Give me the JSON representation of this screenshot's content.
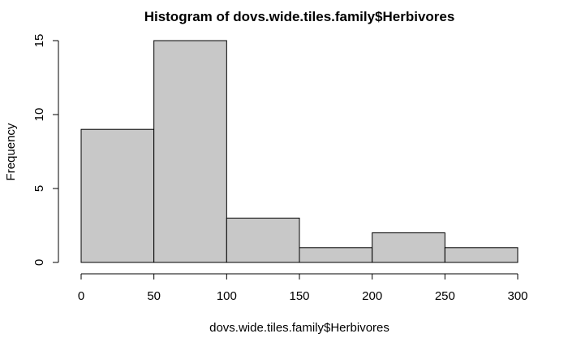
{
  "chart_data": {
    "type": "bar",
    "title": "Histogram of dovs.wide.tiles.family$Herbivores",
    "xlabel": "dovs.wide.tiles.family$Herbivores",
    "ylabel": "Frequency",
    "bins": [
      {
        "from": 0,
        "to": 50,
        "value": 9
      },
      {
        "from": 50,
        "to": 100,
        "value": 15
      },
      {
        "from": 100,
        "to": 150,
        "value": 3
      },
      {
        "from": 150,
        "to": 200,
        "value": 1
      },
      {
        "from": 200,
        "to": 250,
        "value": 2
      },
      {
        "from": 250,
        "to": 300,
        "value": 1
      }
    ],
    "xlim": [
      0,
      300
    ],
    "ylim": [
      0,
      15
    ],
    "x_ticks": [
      "0",
      "50",
      "100",
      "150",
      "200",
      "250",
      "300"
    ],
    "y_ticks": [
      "0",
      "5",
      "10",
      "15"
    ],
    "bar_color": "#c8c8c8",
    "grid": false
  }
}
